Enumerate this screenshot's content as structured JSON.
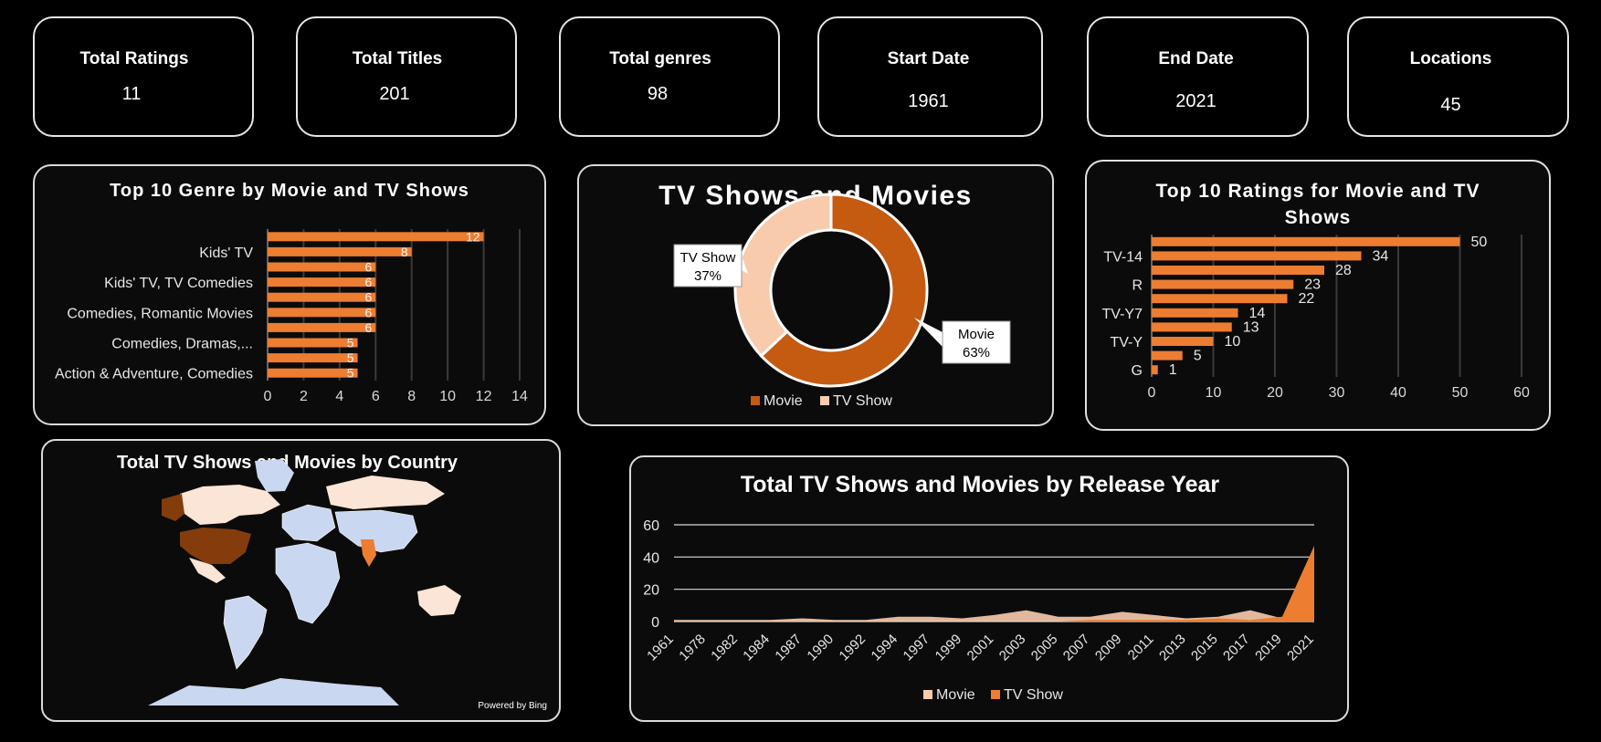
{
  "kpis": [
    {
      "label": "Total Ratings",
      "value": "11"
    },
    {
      "label": "Total Titles",
      "value": "201"
    },
    {
      "label": "Total genres",
      "value": "98"
    },
    {
      "label": "Start Date",
      "value": "1961"
    },
    {
      "label": "End Date",
      "value": "2021"
    },
    {
      "label": "Locations",
      "value": "45"
    }
  ],
  "colors": {
    "movie": "#c55a11",
    "tvshow": "#f8cbad",
    "bar": "#ed7d31",
    "area_tv": "#ed7d31",
    "area_movie": "#f8cbad",
    "map_dark": "#843c0c",
    "map_light": "#fbe5d6",
    "map_blue": "#c9d8f0"
  },
  "map": {
    "title": "Total TV Shows and Movies by Country",
    "credit": "Powered by Bing"
  },
  "chart_data": [
    {
      "type": "bar",
      "title": "Top 10 Genre by Movie and TV Shows",
      "categories": [
        "",
        "Kids' TV",
        "",
        "Kids' TV, TV Comedies",
        "",
        "Comedies, Romantic Movies",
        "",
        "Comedies, Dramas,...",
        "",
        "Action & Adventure, Comedies"
      ],
      "values": [
        12,
        8,
        6,
        6,
        6,
        6,
        6,
        5,
        5,
        5
      ],
      "xlim": [
        0,
        14
      ],
      "xticks": [
        0,
        2,
        4,
        6,
        8,
        10,
        12,
        14
      ],
      "grid": true
    },
    {
      "type": "pie",
      "title": "TV Shows and Movies",
      "labels": [
        "Movie",
        "TV Show"
      ],
      "values": [
        63,
        37
      ],
      "value_labels": [
        "63%",
        "37%"
      ],
      "legend": "bottom"
    },
    {
      "type": "bar",
      "title": "Top 10 Ratings for Movie and TV Shows",
      "categories": [
        "",
        "TV-14",
        "",
        "R",
        "",
        "TV-Y7",
        "",
        "TV-Y",
        "",
        "G"
      ],
      "values": [
        50,
        34,
        28,
        23,
        22,
        14,
        13,
        10,
        5,
        1
      ],
      "xlim": [
        0,
        60
      ],
      "xticks": [
        0,
        10,
        20,
        30,
        40,
        50,
        60
      ],
      "grid": true
    },
    {
      "type": "area",
      "title": "Total TV Shows and Movies by Release Year",
      "x": [
        1961,
        1978,
        1982,
        1984,
        1987,
        1990,
        1992,
        1994,
        1997,
        1999,
        2001,
        2003,
        2005,
        2007,
        2009,
        2011,
        2013,
        2015,
        2017,
        2019,
        2021
      ],
      "series": [
        {
          "name": "Movie",
          "values": [
            1,
            1,
            1,
            1,
            2,
            1,
            1,
            3,
            3,
            2,
            4,
            7,
            3,
            3,
            6,
            4,
            2,
            3,
            7,
            2,
            3
          ]
        },
        {
          "name": "TV Show",
          "values": [
            0,
            0,
            0,
            0,
            0,
            0,
            0,
            0,
            0,
            0,
            0,
            0,
            0,
            1,
            1,
            1,
            1,
            2,
            1,
            3,
            47
          ]
        }
      ],
      "ylim": [
        0,
        60
      ],
      "yticks": [
        0,
        20,
        40,
        60
      ],
      "legend": "bottom",
      "grid": true
    }
  ]
}
